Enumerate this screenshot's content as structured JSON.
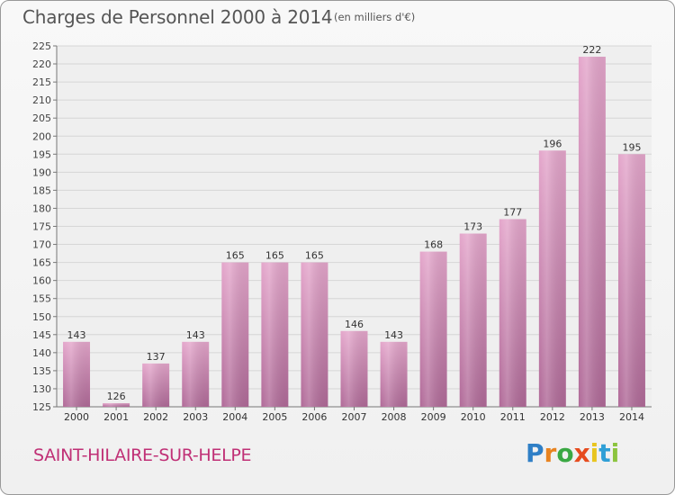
{
  "header": {
    "title": "Charges de Personnel 2000 à 2014",
    "subtitle": "(en milliers d'€)"
  },
  "footer": {
    "location": "SAINT-HILAIRE-SUR-HELPE",
    "logo_text": "Proxiti"
  },
  "colors": {
    "bar_top": "#e4a6cb",
    "bar_bottom": "#b06a98",
    "location": "#c03076"
  },
  "chart_data": {
    "type": "bar",
    "title": "Charges de Personnel 2000 à 2014",
    "subtitle": "(en milliers d'€)",
    "categories": [
      "2000",
      "2001",
      "2002",
      "2003",
      "2004",
      "2005",
      "2006",
      "2007",
      "2008",
      "2009",
      "2010",
      "2011",
      "2012",
      "2013",
      "2014"
    ],
    "values": [
      143,
      126,
      137,
      143,
      165,
      165,
      165,
      146,
      143,
      168,
      173,
      177,
      196,
      222,
      195
    ],
    "ylim": [
      125,
      225
    ],
    "yticks": [
      125,
      130,
      135,
      140,
      145,
      150,
      155,
      160,
      165,
      170,
      175,
      180,
      185,
      190,
      195,
      200,
      205,
      210,
      215,
      220,
      225
    ],
    "grid": true,
    "legend": "none"
  }
}
